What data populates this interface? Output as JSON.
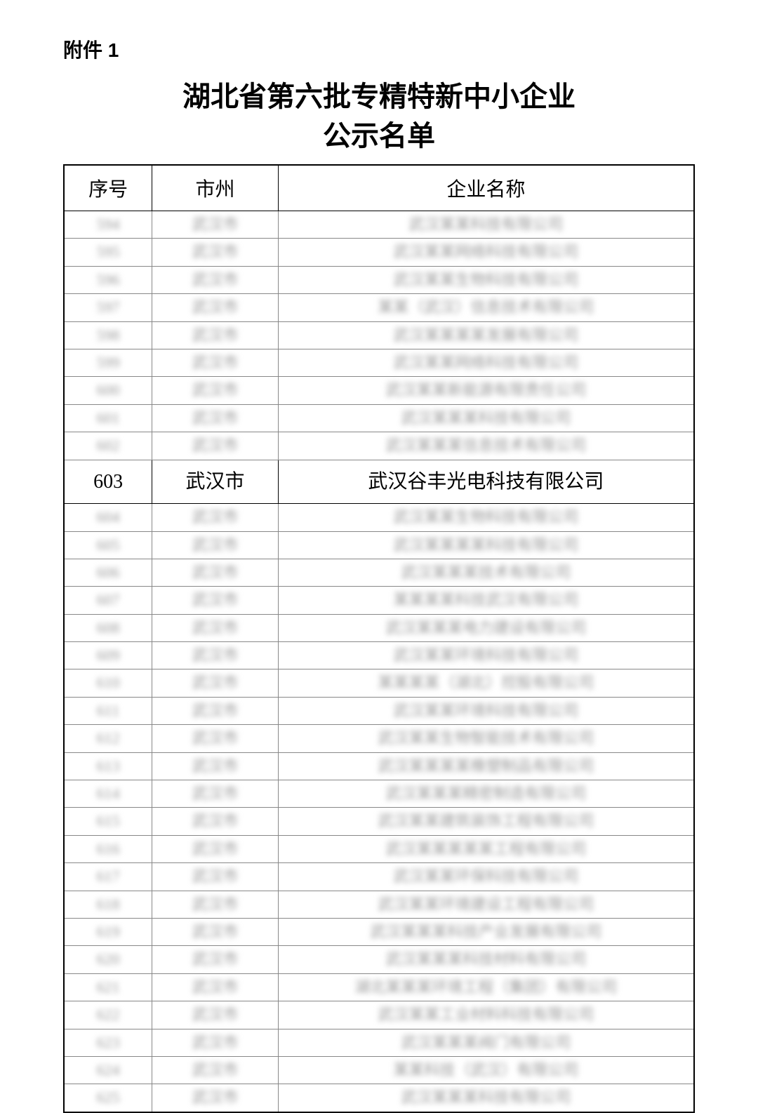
{
  "attachment_label": "附件 1",
  "title_line1": "湖北省第六批专精特新中小企业",
  "title_line2": "公示名单",
  "table": {
    "columns": {
      "seq": "序号",
      "city": "市州",
      "company": "企业名称"
    },
    "highlighted_row": {
      "seq": "603",
      "city": "武汉市",
      "company": "武汉谷丰光电科技有限公司"
    },
    "blurred_rows_before": [
      {
        "seq": "594",
        "city": "武汉市",
        "company": "武汉某某科技有限公司"
      },
      {
        "seq": "595",
        "city": "武汉市",
        "company": "武汉某某网络科技有限公司"
      },
      {
        "seq": "596",
        "city": "武汉市",
        "company": "武汉某某生物科技有限公司"
      },
      {
        "seq": "597",
        "city": "武汉市",
        "company": "某某（武汉）信息技术有限公司"
      },
      {
        "seq": "598",
        "city": "武汉市",
        "company": "武汉某某某某发展有限公司"
      },
      {
        "seq": "599",
        "city": "武汉市",
        "company": "武汉某某网络科技有限公司"
      },
      {
        "seq": "600",
        "city": "武汉市",
        "company": "武汉某某新能源有限责任公司"
      },
      {
        "seq": "601",
        "city": "武汉市",
        "company": "武汉某某某科技有限公司"
      },
      {
        "seq": "602",
        "city": "武汉市",
        "company": "武汉某某某信息技术有限公司"
      }
    ],
    "blurred_rows_after": [
      {
        "seq": "604",
        "city": "武汉市",
        "company": "武汉某某生物科技有限公司"
      },
      {
        "seq": "605",
        "city": "武汉市",
        "company": "武汉某某某某科技有限公司"
      },
      {
        "seq": "606",
        "city": "武汉市",
        "company": "武汉某某某技术有限公司"
      },
      {
        "seq": "607",
        "city": "武汉市",
        "company": "某某某某科技武汉有限公司"
      },
      {
        "seq": "608",
        "city": "武汉市",
        "company": "武汉某某某电力建设有限公司"
      },
      {
        "seq": "609",
        "city": "武汉市",
        "company": "武汉某某环境科技有限公司"
      },
      {
        "seq": "610",
        "city": "武汉市",
        "company": "某某某某（湖北）控股有限公司"
      },
      {
        "seq": "611",
        "city": "武汉市",
        "company": "武汉某某环境科技有限公司"
      },
      {
        "seq": "612",
        "city": "武汉市",
        "company": "武汉某某生物智能技术有限公司"
      },
      {
        "seq": "613",
        "city": "武汉市",
        "company": "武汉某某某某橡塑制品有限公司"
      },
      {
        "seq": "614",
        "city": "武汉市",
        "company": "武汉某某某精密制造有限公司"
      },
      {
        "seq": "615",
        "city": "武汉市",
        "company": "武汉某某建筑装饰工程有限公司"
      },
      {
        "seq": "616",
        "city": "武汉市",
        "company": "武汉某某某某某工程有限公司"
      },
      {
        "seq": "617",
        "city": "武汉市",
        "company": "武汉某某环保科技有限公司"
      },
      {
        "seq": "618",
        "city": "武汉市",
        "company": "武汉某某环境建设工程有限公司"
      },
      {
        "seq": "619",
        "city": "武汉市",
        "company": "武汉某某某科技产业发展有限公司"
      },
      {
        "seq": "620",
        "city": "武汉市",
        "company": "武汉某某某科技材料有限公司"
      },
      {
        "seq": "621",
        "city": "武汉市",
        "company": "湖北某某某环境工程（集团）有限公司"
      },
      {
        "seq": "622",
        "city": "武汉市",
        "company": "武汉某某工业材料科技有限公司"
      },
      {
        "seq": "623",
        "city": "武汉市",
        "company": "武汉某某某阀门有限公司"
      },
      {
        "seq": "624",
        "city": "武汉市",
        "company": "某某科技（武汉）有限公司"
      },
      {
        "seq": "625",
        "city": "武汉市",
        "company": "武汉某某某科技有限公司"
      }
    ]
  },
  "styling": {
    "page_bg": "#ffffff",
    "border_color": "#000000",
    "blurred_text_color": "#999999",
    "title_fontsize": 40,
    "header_fontsize": 28,
    "highlighted_fontsize": 28,
    "blurred_fontsize": 22,
    "col_widths": {
      "seq": "14%",
      "city": "20%",
      "company": "66%"
    }
  }
}
